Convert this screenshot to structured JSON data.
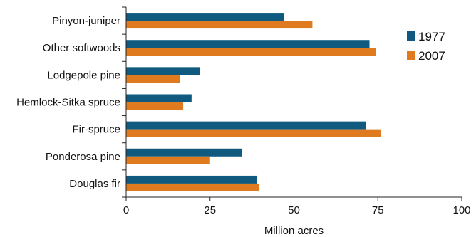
{
  "chart_data": {
    "type": "bar",
    "orientation": "horizontal",
    "categories": [
      "Pinyon-juniper",
      "Other softwoods",
      "Lodgepole pine",
      "Hemlock-Sitka spruce",
      "Fir-spruce",
      "Ponderosa pine",
      "Douglas fir"
    ],
    "series": [
      {
        "name": "1977",
        "color": "#0f5a7e",
        "values": [
          47,
          72.5,
          22,
          19.5,
          71.5,
          34.5,
          39
        ]
      },
      {
        "name": "2007",
        "color": "#e07a1f",
        "values": [
          55.5,
          74.5,
          16,
          17,
          76,
          25,
          39.5
        ]
      }
    ],
    "xlabel": "Million acres",
    "ylabel": "",
    "xlim": [
      0,
      100
    ],
    "xticks": [
      0,
      25,
      50,
      75,
      100
    ],
    "grid": false,
    "legend": "top-right"
  }
}
